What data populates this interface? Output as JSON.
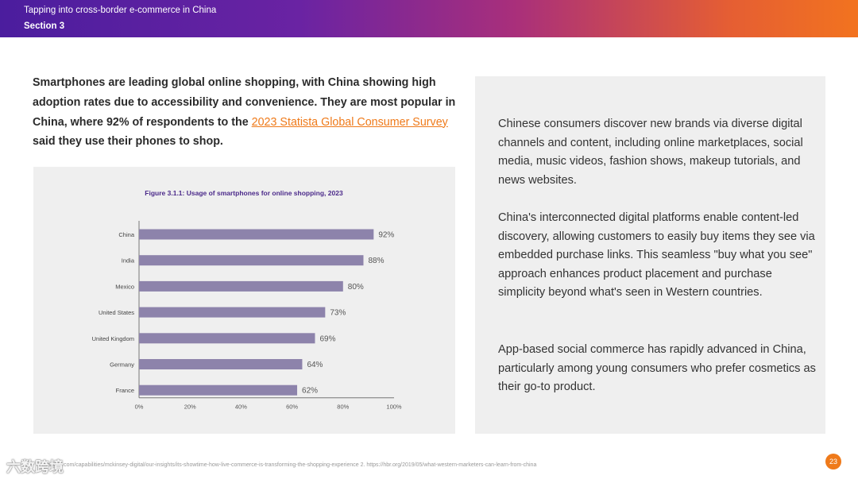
{
  "header": {
    "title": "Tapping into cross-border e-commerce in China",
    "section": "Section 3"
  },
  "intro": {
    "text_before": "Smartphones are leading global online shopping, with China showing high adoption rates due to accessibility and convenience. They are most popular in China, where 92% of respondents to the ",
    "link_text": "2023 Statista Global Consumer Survey ",
    "text_after": "said they use their phones to shop."
  },
  "chart_data": {
    "type": "bar",
    "orientation": "horizontal",
    "title": "Figure 3.1.1: Usage of smartphones for online shopping, 2023",
    "categories": [
      "China",
      "India",
      "Mexico",
      "United States",
      "United Kingdom",
      "Germany",
      "France"
    ],
    "values": [
      92,
      88,
      80,
      73,
      69,
      64,
      62
    ],
    "value_labels": [
      "92%",
      "88%",
      "80%",
      "73%",
      "69%",
      "64%",
      "62%"
    ],
    "xticks": [
      "0%",
      "20%",
      "40%",
      "60%",
      "80%",
      "100%"
    ],
    "xlim": [
      0,
      100
    ],
    "bar_color": "#8d83ab",
    "xlabel": "",
    "ylabel": ""
  },
  "right_panel": {
    "paragraphs": [
      "Chinese consumers discover new brands via diverse digital channels and content, including online marketplaces, social media, music videos, fashion shows, makeup tutorials, and news websites.",
      "China's interconnected digital platforms enable content-led discovery, allowing customers to easily buy items they see via embedded purchase links. This seamless \"buy what you see\" approach enhances product placement and purchase simplicity beyond what's seen in Western countries.",
      "App-based social commerce has rapidly advanced in China, particularly among young consumers who prefer cosmetics as their go-to product."
    ]
  },
  "footer": {
    "sources": "ansey.com/capabilities/mckinsey-digital/our-insights/its-showtime-how-live-commerce-is-transforming-the-shopping-experience  2. https://hbr.org/2019/05/what-western-marketers-can-learn-from-china",
    "page_number": "23",
    "watermark": "六数跨境"
  }
}
